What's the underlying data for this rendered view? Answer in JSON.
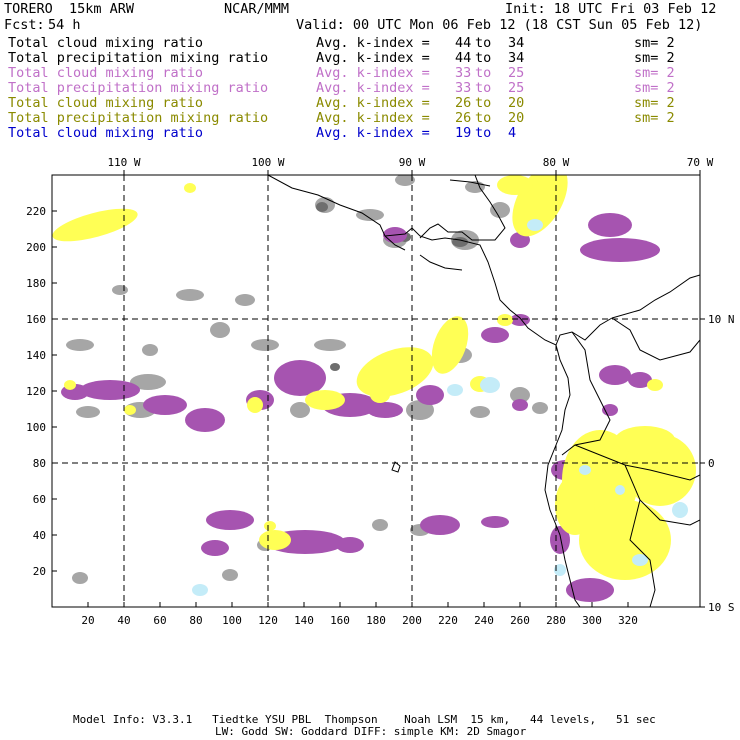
{
  "header": {
    "model": "TORERO  15km ARW",
    "center": "NCAR/MMM",
    "init": "Init: 18 UTC Fri 03 Feb 12",
    "fcst_label": "Fcst:",
    "fcst_value": "54 h",
    "valid": "Valid: 00 UTC Mon 06 Feb 12 (18 CST Sun 05 Feb 12)"
  },
  "legend": [
    {
      "field": "Total cloud mixing ratio",
      "avg": "Avg. k-index =",
      "k_from": "44",
      "to": "to",
      "k_to": "34",
      "sm": "sm= 2",
      "color": "#000000"
    },
    {
      "field": "Total precipitation mixing ratio",
      "avg": "Avg. k-index =",
      "k_from": "44",
      "to": "to",
      "k_to": "34",
      "sm": "sm= 2",
      "color": "#000000"
    },
    {
      "field": "Total cloud mixing ratio",
      "avg": "Avg. k-index =",
      "k_from": "33",
      "to": "to",
      "k_to": "25",
      "sm": "sm= 2",
      "color": "#c070c8"
    },
    {
      "field": "Total precipitation mixing ratio",
      "avg": "Avg. k-index =",
      "k_from": "33",
      "to": "to",
      "k_to": "25",
      "sm": "sm= 2",
      "color": "#c070c8"
    },
    {
      "field": "Total cloud mixing ratio",
      "avg": "Avg. k-index =",
      "k_from": "26",
      "to": "to",
      "k_to": "20",
      "sm": "sm= 2",
      "color": "#8a8a00"
    },
    {
      "field": "Total precipitation mixing ratio",
      "avg": "Avg. k-index =",
      "k_from": "26",
      "to": "to",
      "k_to": "20",
      "sm": "sm= 2",
      "color": "#8a8a00"
    },
    {
      "field": "Total cloud mixing ratio",
      "avg": "Avg. k-index =",
      "k_from": "19",
      "to": "to",
      "k_to": "4",
      "sm": "",
      "color": "#0000cc"
    }
  ],
  "map": {
    "lon_labels": [
      "110 W",
      "100 W",
      "90 W",
      "80 W",
      "70 W"
    ],
    "lat_labels": [
      "10 N",
      "0",
      "10 S"
    ],
    "x_ticks": [
      "20",
      "40",
      "60",
      "80",
      "100",
      "120",
      "140",
      "160",
      "180",
      "200",
      "220",
      "240",
      "260",
      "280",
      "300",
      "320"
    ],
    "y_ticks": [
      "220",
      "200",
      "180",
      "160",
      "140",
      "120",
      "100",
      "80",
      "60",
      "40",
      "20"
    ],
    "colors": {
      "gray": "#a6a6a6",
      "dark_gray": "#6e6e6e",
      "purple": "#a654b0",
      "yellow": "#ffff55",
      "light_blue": "#c4ecf8"
    }
  },
  "footer": {
    "line1": "Model Info: V3.3.1   Tiedtke YSU PBL  Thompson    Noah LSM  15 km,   44 levels,   51 sec",
    "line2": "LW: Godd SW: Goddard DIFF: simple KM: 2D Smagor"
  }
}
